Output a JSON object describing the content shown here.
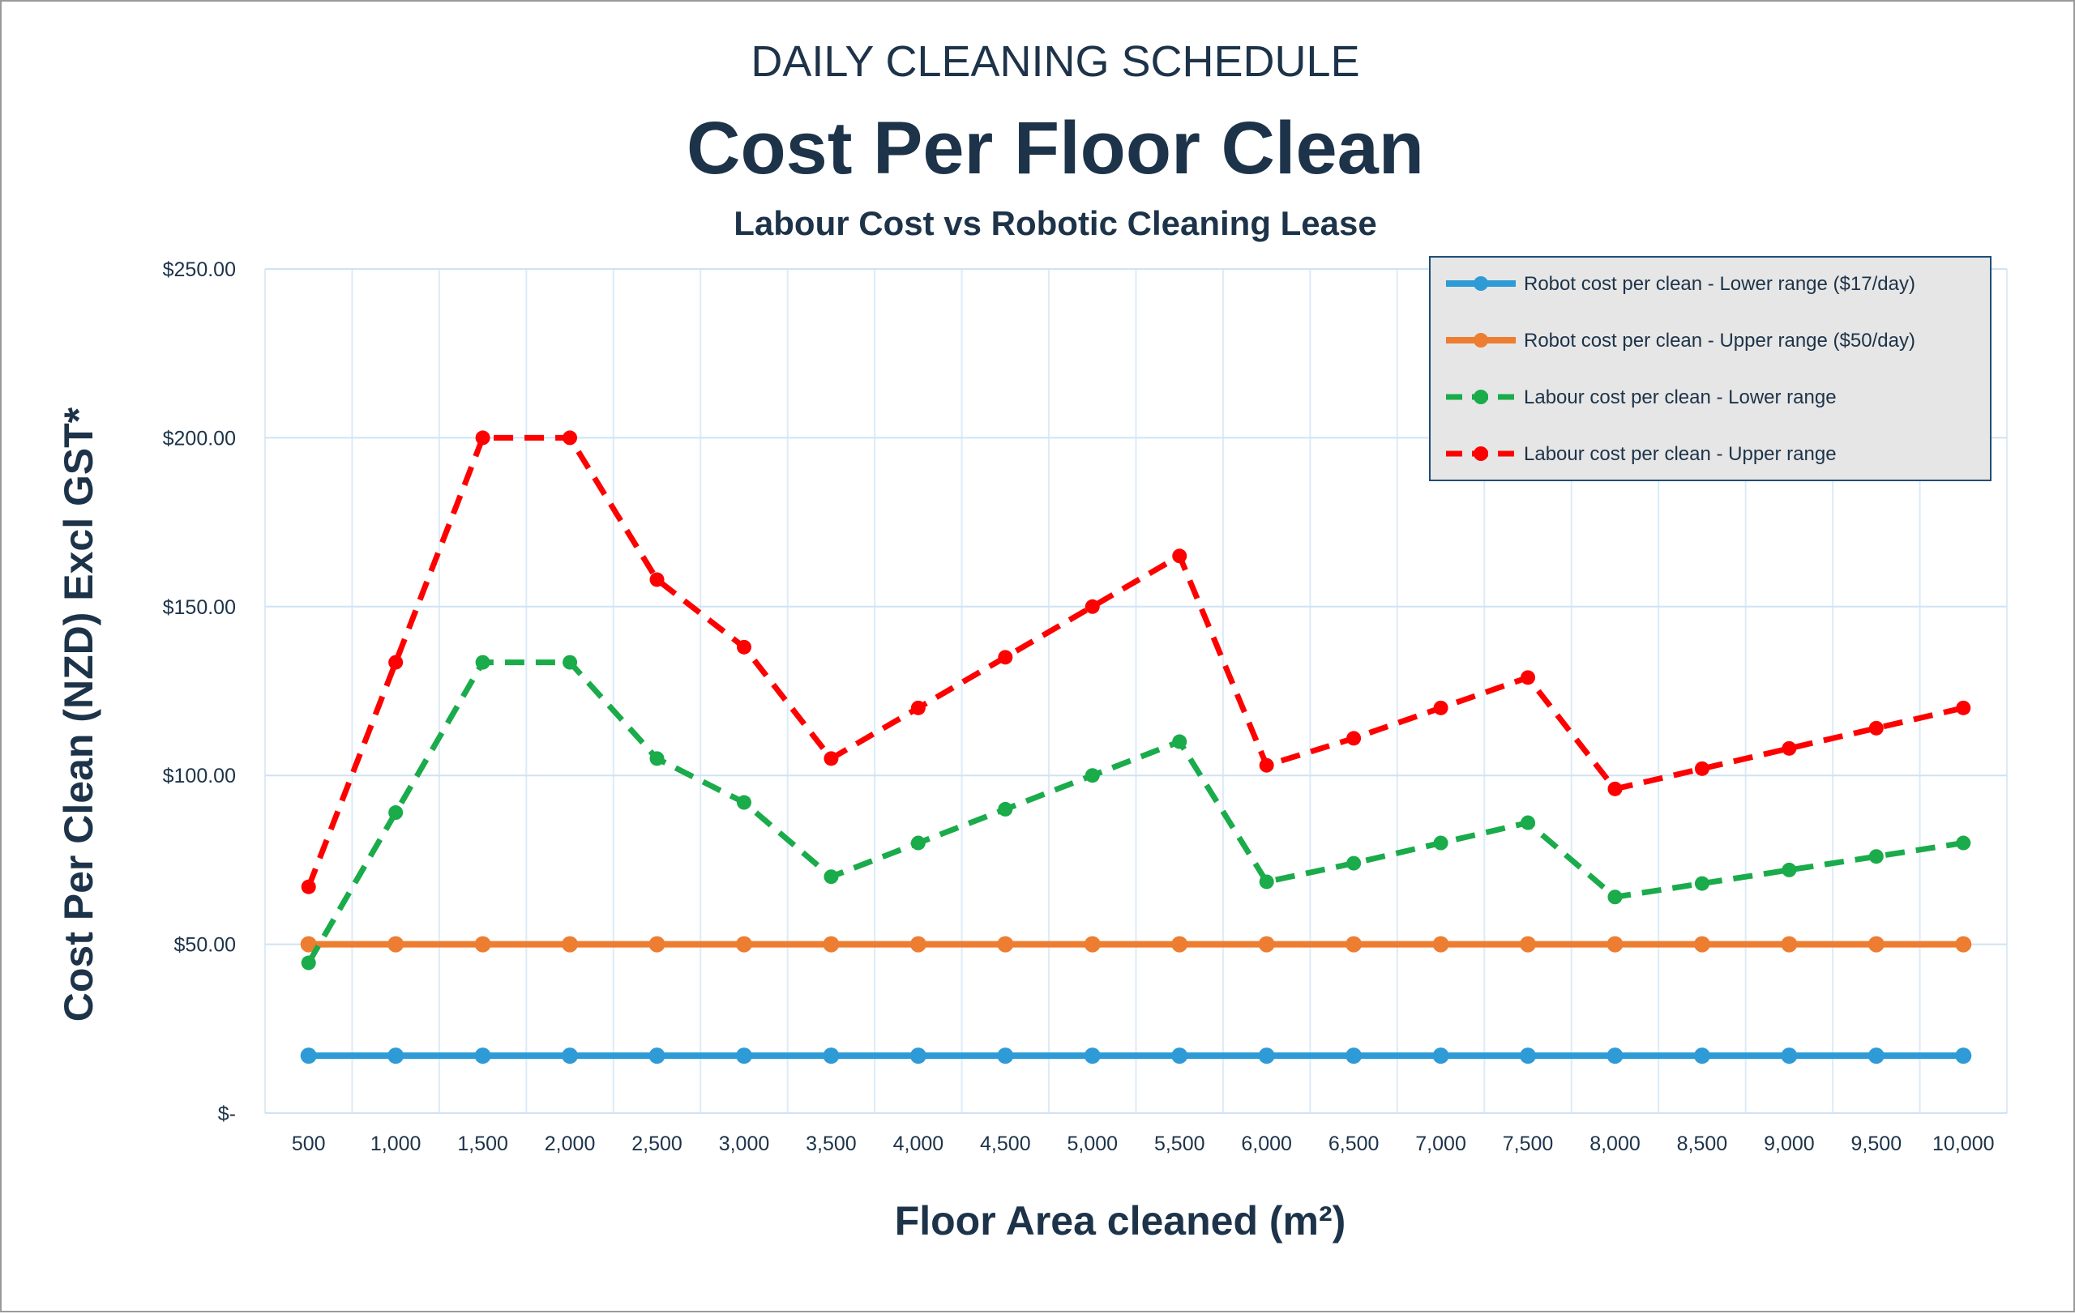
{
  "chart_data": {
    "type": "line",
    "supertitle": "DAILY CLEANING SCHEDULE",
    "title": "Cost Per Floor Clean",
    "subtitle": "Labour Cost vs Robotic Cleaning Lease",
    "xlabel": "Floor Area cleaned (m²)",
    "ylabel": "Cost Per Clean (NZD) Excl GST*",
    "categories": [
      "500",
      "1,000",
      "1,500",
      "2,000",
      "2,500",
      "3,000",
      "3,500",
      "4,000",
      "4,500",
      "5,000",
      "5,500",
      "6,000",
      "6,500",
      "7,000",
      "7,500",
      "8,000",
      "8,500",
      "9,000",
      "9,500",
      "10,000"
    ],
    "y_ticks": [
      "$-",
      "$50.00",
      "$100.00",
      "$150.00",
      "$200.00",
      "$250.00"
    ],
    "ylim": [
      0,
      250
    ],
    "grid": true,
    "legend_position": "top-right",
    "series": [
      {
        "name": "Robot cost per clean - Lower  range ($17/day)",
        "color": "#2e9bd6",
        "style": "solid",
        "values": [
          17,
          17,
          17,
          17,
          17,
          17,
          17,
          17,
          17,
          17,
          17,
          17,
          17,
          17,
          17,
          17,
          17,
          17,
          17,
          17
        ]
      },
      {
        "name": "Robot cost per clean - Upper  range ($50/day)",
        "color": "#ed7d31",
        "style": "solid",
        "values": [
          50,
          50,
          50,
          50,
          50,
          50,
          50,
          50,
          50,
          50,
          50,
          50,
          50,
          50,
          50,
          50,
          50,
          50,
          50,
          50
        ]
      },
      {
        "name": "Labour cost per clean - Lower range",
        "color": "#1aab4b",
        "style": "dashed",
        "values": [
          44.5,
          89,
          133.5,
          133.5,
          105,
          92,
          70,
          80,
          90,
          100,
          110,
          68.5,
          74,
          80,
          86,
          64,
          68,
          72,
          76,
          80
        ]
      },
      {
        "name": "Labour cost per clean - Upper range",
        "color": "#ff0000",
        "style": "dashed",
        "values": [
          67,
          133.5,
          200,
          200,
          158,
          138,
          105,
          120,
          135,
          150,
          165,
          103,
          111,
          120,
          129,
          96,
          102,
          108,
          114,
          120
        ]
      }
    ]
  }
}
